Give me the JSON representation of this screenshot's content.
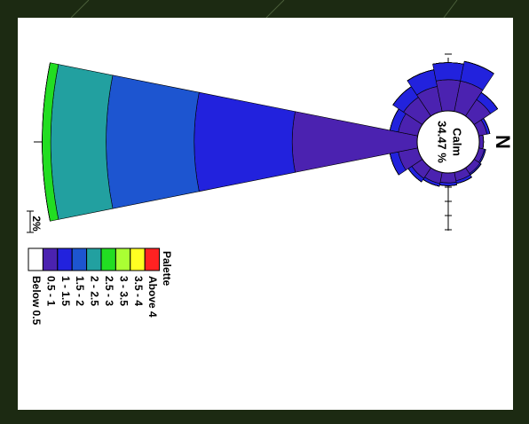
{
  "chart_data": {
    "type": "windrose",
    "calm": {
      "label": "Calm",
      "value": 34.47,
      "value_label": "34.47 %"
    },
    "north_label": "N",
    "scale_label": "2%",
    "legend_title": "Palette",
    "series": [
      {
        "name": "Below 0.5",
        "color": "#ffffff",
        "values": [
          0,
          0,
          0,
          0,
          0,
          0,
          0,
          0,
          0,
          0,
          0,
          0,
          0,
          0,
          0,
          0
        ]
      },
      {
        "name": "0.5 - 1",
        "color": "#4b22b0",
        "values": [
          0.3,
          0.4,
          0.5,
          0.6,
          0.7,
          0.8,
          0.9,
          1.4,
          8.8,
          1.4,
          1.6,
          1.8,
          2.2,
          2.2,
          1.4,
          0.6
        ]
      },
      {
        "name": "1 - 1.5",
        "color": "#2222dd",
        "values": [
          0,
          0.1,
          0.1,
          0.2,
          0.2,
          0.2,
          0.3,
          0.6,
          6.9,
          0.6,
          0.9,
          1.2,
          1.2,
          1.4,
          0.6,
          0.2
        ]
      },
      {
        "name": "1.5 - 2",
        "color": "#1d55d0",
        "values": [
          0,
          0,
          0,
          0,
          0,
          0,
          0,
          0,
          6.2,
          0,
          0,
          0,
          0,
          0,
          0,
          0
        ]
      },
      {
        "name": "2 - 2.5",
        "color": "#22a0a0",
        "values": [
          0,
          0,
          0,
          0,
          0,
          0,
          0,
          0,
          3.9,
          0,
          0,
          0,
          0,
          0,
          0,
          0
        ]
      },
      {
        "name": "2.5 - 3",
        "color": "#22dd22",
        "values": [
          0,
          0,
          0,
          0,
          0,
          0,
          0,
          0,
          0.6,
          0,
          0,
          0,
          0,
          0,
          0,
          0
        ]
      },
      {
        "name": "3 - 3.5",
        "color": "#aaff33",
        "values": [
          0,
          0,
          0,
          0,
          0,
          0,
          0,
          0,
          0,
          0,
          0,
          0,
          0,
          0,
          0,
          0
        ]
      },
      {
        "name": "3.5 - 4",
        "color": "#ffff22",
        "values": [
          0,
          0,
          0,
          0,
          0,
          0,
          0,
          0,
          0,
          0,
          0,
          0,
          0,
          0,
          0,
          0
        ]
      },
      {
        "name": "Above 4",
        "color": "#ff2222",
        "values": [
          0,
          0,
          0,
          0,
          0,
          0,
          0,
          0,
          0,
          0,
          0,
          0,
          0,
          0,
          0,
          0
        ]
      }
    ]
  }
}
